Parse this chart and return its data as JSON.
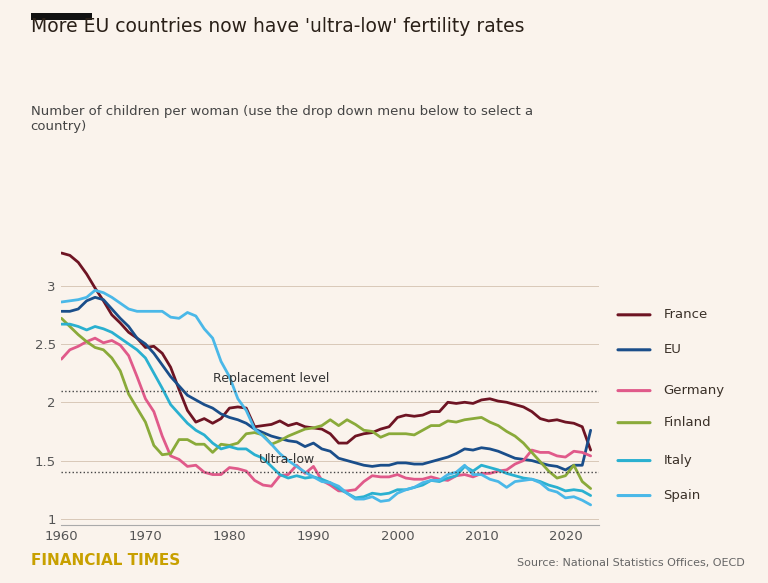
{
  "title": "More EU countries now have 'ultra-low' fertility rates",
  "subtitle": "Number of children per woman (use the drop down menu below to select a\ncountry)",
  "footer_left": "FINANCIAL TIMES",
  "footer_right": "Source: National Statistics Offices, OECD",
  "background_color": "#faf3ec",
  "replacement_level": 2.1,
  "replacement_label": "Replacement level",
  "ultra_low": 1.4,
  "ultra_low_label": "Ultra-low",
  "xlim": [
    1960,
    2024
  ],
  "ylim": [
    0.95,
    3.45
  ],
  "yticks": [
    1.0,
    1.5,
    2.0,
    2.5,
    3.0
  ],
  "ytick_labels": [
    "1",
    "1.5",
    "2",
    "2.5",
    "3"
  ],
  "xticks": [
    1960,
    1970,
    1980,
    1990,
    2000,
    2010,
    2020
  ],
  "series": {
    "France": {
      "color": "#6e1423",
      "lw": 2.0,
      "years": [
        1960,
        1961,
        1962,
        1963,
        1964,
        1965,
        1966,
        1967,
        1968,
        1969,
        1970,
        1971,
        1972,
        1973,
        1974,
        1975,
        1976,
        1977,
        1978,
        1979,
        1980,
        1981,
        1982,
        1983,
        1984,
        1985,
        1986,
        1987,
        1988,
        1989,
        1990,
        1991,
        1992,
        1993,
        1994,
        1995,
        1996,
        1997,
        1998,
        1999,
        2000,
        2001,
        2002,
        2003,
        2004,
        2005,
        2006,
        2007,
        2008,
        2009,
        2010,
        2011,
        2012,
        2013,
        2014,
        2015,
        2016,
        2017,
        2018,
        2019,
        2020,
        2021,
        2022,
        2023
      ],
      "values": [
        3.28,
        3.26,
        3.2,
        3.1,
        2.98,
        2.87,
        2.75,
        2.68,
        2.6,
        2.55,
        2.47,
        2.48,
        2.42,
        2.3,
        2.11,
        1.93,
        1.83,
        1.86,
        1.82,
        1.86,
        1.95,
        1.96,
        1.95,
        1.79,
        1.8,
        1.81,
        1.84,
        1.8,
        1.82,
        1.79,
        1.78,
        1.77,
        1.73,
        1.65,
        1.65,
        1.71,
        1.73,
        1.74,
        1.77,
        1.79,
        1.87,
        1.89,
        1.88,
        1.89,
        1.92,
        1.92,
        2.0,
        1.99,
        2.0,
        1.99,
        2.02,
        2.03,
        2.01,
        2.0,
        1.98,
        1.96,
        1.92,
        1.86,
        1.84,
        1.85,
        1.83,
        1.82,
        1.79,
        1.59
      ]
    },
    "EU": {
      "color": "#1a4e8a",
      "lw": 2.0,
      "years": [
        1960,
        1961,
        1962,
        1963,
        1964,
        1965,
        1966,
        1967,
        1968,
        1969,
        1970,
        1971,
        1972,
        1973,
        1974,
        1975,
        1976,
        1977,
        1978,
        1979,
        1980,
        1981,
        1982,
        1983,
        1984,
        1985,
        1986,
        1987,
        1988,
        1989,
        1990,
        1991,
        1992,
        1993,
        1994,
        1995,
        1996,
        1997,
        1998,
        1999,
        2000,
        2001,
        2002,
        2003,
        2004,
        2005,
        2006,
        2007,
        2008,
        2009,
        2010,
        2011,
        2012,
        2013,
        2014,
        2015,
        2016,
        2017,
        2018,
        2019,
        2020,
        2021,
        2022,
        2023
      ],
      "values": [
        2.78,
        2.78,
        2.8,
        2.87,
        2.9,
        2.88,
        2.8,
        2.72,
        2.65,
        2.55,
        2.5,
        2.42,
        2.32,
        2.22,
        2.14,
        2.06,
        2.02,
        1.98,
        1.95,
        1.9,
        1.87,
        1.85,
        1.82,
        1.77,
        1.74,
        1.71,
        1.69,
        1.67,
        1.66,
        1.62,
        1.65,
        1.6,
        1.58,
        1.52,
        1.5,
        1.48,
        1.46,
        1.45,
        1.46,
        1.46,
        1.48,
        1.48,
        1.47,
        1.47,
        1.49,
        1.51,
        1.53,
        1.56,
        1.6,
        1.59,
        1.61,
        1.6,
        1.58,
        1.55,
        1.52,
        1.51,
        1.5,
        1.48,
        1.46,
        1.45,
        1.42,
        1.46,
        1.46,
        1.76
      ]
    },
    "Germany": {
      "color": "#e05a8a",
      "lw": 2.0,
      "years": [
        1960,
        1961,
        1962,
        1963,
        1964,
        1965,
        1966,
        1967,
        1968,
        1969,
        1970,
        1971,
        1972,
        1973,
        1974,
        1975,
        1976,
        1977,
        1978,
        1979,
        1980,
        1981,
        1982,
        1983,
        1984,
        1985,
        1986,
        1987,
        1988,
        1989,
        1990,
        1991,
        1992,
        1993,
        1994,
        1995,
        1996,
        1997,
        1998,
        1999,
        2000,
        2001,
        2002,
        2003,
        2004,
        2005,
        2006,
        2007,
        2008,
        2009,
        2010,
        2011,
        2012,
        2013,
        2014,
        2015,
        2016,
        2017,
        2018,
        2019,
        2020,
        2021,
        2022,
        2023
      ],
      "values": [
        2.37,
        2.45,
        2.48,
        2.52,
        2.55,
        2.51,
        2.53,
        2.49,
        2.4,
        2.22,
        2.03,
        1.92,
        1.71,
        1.54,
        1.51,
        1.45,
        1.46,
        1.4,
        1.38,
        1.38,
        1.44,
        1.43,
        1.41,
        1.33,
        1.29,
        1.28,
        1.37,
        1.38,
        1.46,
        1.39,
        1.45,
        1.33,
        1.29,
        1.24,
        1.24,
        1.25,
        1.32,
        1.37,
        1.36,
        1.36,
        1.38,
        1.35,
        1.34,
        1.34,
        1.36,
        1.34,
        1.33,
        1.37,
        1.38,
        1.36,
        1.39,
        1.39,
        1.41,
        1.42,
        1.47,
        1.5,
        1.59,
        1.57,
        1.57,
        1.54,
        1.53,
        1.58,
        1.57,
        1.54
      ]
    },
    "Finland": {
      "color": "#8aaa3a",
      "lw": 2.0,
      "years": [
        1960,
        1961,
        1962,
        1963,
        1964,
        1965,
        1966,
        1967,
        1968,
        1969,
        1970,
        1971,
        1972,
        1973,
        1974,
        1975,
        1976,
        1977,
        1978,
        1979,
        1980,
        1981,
        1982,
        1983,
        1984,
        1985,
        1986,
        1987,
        1988,
        1989,
        1990,
        1991,
        1992,
        1993,
        1994,
        1995,
        1996,
        1997,
        1998,
        1999,
        2000,
        2001,
        2002,
        2003,
        2004,
        2005,
        2006,
        2007,
        2008,
        2009,
        2010,
        2011,
        2012,
        2013,
        2014,
        2015,
        2016,
        2017,
        2018,
        2019,
        2020,
        2021,
        2022,
        2023
      ],
      "values": [
        2.72,
        2.65,
        2.58,
        2.52,
        2.47,
        2.45,
        2.38,
        2.27,
        2.07,
        1.95,
        1.83,
        1.63,
        1.55,
        1.56,
        1.68,
        1.68,
        1.64,
        1.64,
        1.57,
        1.64,
        1.63,
        1.65,
        1.73,
        1.74,
        1.72,
        1.64,
        1.67,
        1.71,
        1.74,
        1.77,
        1.78,
        1.8,
        1.85,
        1.8,
        1.85,
        1.81,
        1.76,
        1.75,
        1.7,
        1.73,
        1.73,
        1.73,
        1.72,
        1.76,
        1.8,
        1.8,
        1.84,
        1.83,
        1.85,
        1.86,
        1.87,
        1.83,
        1.8,
        1.75,
        1.71,
        1.65,
        1.57,
        1.49,
        1.41,
        1.35,
        1.37,
        1.46,
        1.32,
        1.26
      ]
    },
    "Italy": {
      "color": "#2ab0d0",
      "lw": 2.0,
      "years": [
        1960,
        1961,
        1962,
        1963,
        1964,
        1965,
        1966,
        1967,
        1968,
        1969,
        1970,
        1971,
        1972,
        1973,
        1974,
        1975,
        1976,
        1977,
        1978,
        1979,
        1980,
        1981,
        1982,
        1983,
        1984,
        1985,
        1986,
        1987,
        1988,
        1989,
        1990,
        1991,
        1992,
        1993,
        1994,
        1995,
        1996,
        1997,
        1998,
        1999,
        2000,
        2001,
        2002,
        2003,
        2004,
        2005,
        2006,
        2007,
        2008,
        2009,
        2010,
        2011,
        2012,
        2013,
        2014,
        2015,
        2016,
        2017,
        2018,
        2019,
        2020,
        2021,
        2022,
        2023
      ],
      "values": [
        2.67,
        2.67,
        2.65,
        2.62,
        2.65,
        2.63,
        2.6,
        2.55,
        2.5,
        2.45,
        2.38,
        2.25,
        2.12,
        1.98,
        1.9,
        1.82,
        1.76,
        1.72,
        1.65,
        1.6,
        1.62,
        1.6,
        1.6,
        1.55,
        1.52,
        1.45,
        1.38,
        1.35,
        1.37,
        1.35,
        1.36,
        1.34,
        1.31,
        1.26,
        1.22,
        1.18,
        1.19,
        1.22,
        1.21,
        1.22,
        1.25,
        1.25,
        1.27,
        1.29,
        1.33,
        1.32,
        1.35,
        1.37,
        1.45,
        1.41,
        1.46,
        1.44,
        1.42,
        1.39,
        1.37,
        1.35,
        1.34,
        1.32,
        1.29,
        1.27,
        1.24,
        1.25,
        1.24,
        1.2
      ]
    },
    "Spain": {
      "color": "#4ab8e8",
      "lw": 2.0,
      "years": [
        1960,
        1961,
        1962,
        1963,
        1964,
        1965,
        1966,
        1967,
        1968,
        1969,
        1970,
        1971,
        1972,
        1973,
        1974,
        1975,
        1976,
        1977,
        1978,
        1979,
        1980,
        1981,
        1982,
        1983,
        1984,
        1985,
        1986,
        1987,
        1988,
        1989,
        1990,
        1991,
        1992,
        1993,
        1994,
        1995,
        1996,
        1997,
        1998,
        1999,
        2000,
        2001,
        2002,
        2003,
        2004,
        2005,
        2006,
        2007,
        2008,
        2009,
        2010,
        2011,
        2012,
        2013,
        2014,
        2015,
        2016,
        2017,
        2018,
        2019,
        2020,
        2021,
        2022,
        2023
      ],
      "values": [
        2.86,
        2.87,
        2.88,
        2.9,
        2.96,
        2.94,
        2.9,
        2.85,
        2.8,
        2.78,
        2.78,
        2.78,
        2.78,
        2.73,
        2.72,
        2.77,
        2.74,
        2.63,
        2.55,
        2.35,
        2.22,
        2.03,
        1.93,
        1.77,
        1.71,
        1.64,
        1.56,
        1.5,
        1.45,
        1.4,
        1.36,
        1.32,
        1.31,
        1.28,
        1.22,
        1.17,
        1.17,
        1.19,
        1.15,
        1.16,
        1.22,
        1.25,
        1.27,
        1.31,
        1.33,
        1.33,
        1.38,
        1.4,
        1.46,
        1.38,
        1.38,
        1.34,
        1.32,
        1.27,
        1.32,
        1.33,
        1.34,
        1.31,
        1.25,
        1.23,
        1.18,
        1.19,
        1.16,
        1.12
      ]
    }
  },
  "legend_order": [
    "France",
    "EU",
    "Germany",
    "Finland",
    "Italy",
    "Spain"
  ]
}
